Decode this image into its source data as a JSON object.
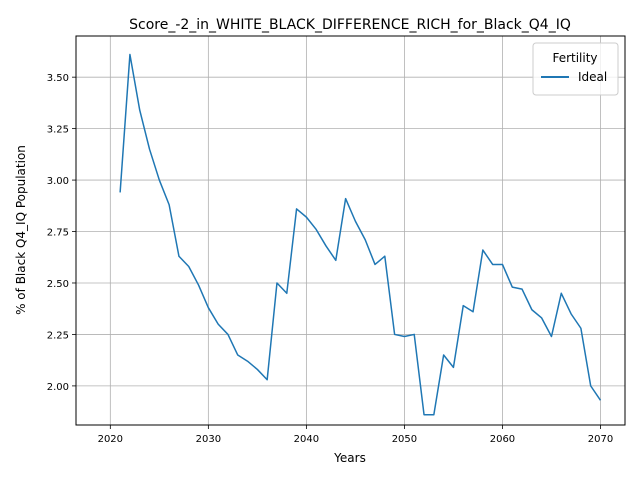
{
  "chart_data": {
    "type": "line",
    "title": "Score_-2_in_WHITE_BLACK_DIFFERENCE_RICH_for_Black_Q4_IQ",
    "xlabel": "Years",
    "ylabel": "% of Black Q4_IQ Population",
    "xlim": [
      2016.5,
      2072.5
    ],
    "ylim": [
      1.81,
      3.7
    ],
    "xticks": [
      2020,
      2030,
      2040,
      2050,
      2060,
      2070
    ],
    "yticks": [
      2.0,
      2.25,
      2.5,
      2.75,
      3.0,
      3.25,
      3.5
    ],
    "ytick_labels": [
      "2.00",
      "2.25",
      "2.50",
      "2.75",
      "3.00",
      "3.25",
      "3.50"
    ],
    "grid": true,
    "legend": {
      "title": "Fertility",
      "position": "top-right"
    },
    "series": [
      {
        "name": "Ideal",
        "color": "#1f77b4",
        "x": [
          2021,
          2022,
          2023,
          2024,
          2025,
          2026,
          2027,
          2028,
          2029,
          2030,
          2031,
          2032,
          2033,
          2034,
          2035,
          2036,
          2037,
          2038,
          2039,
          2040,
          2041,
          2042,
          2043,
          2044,
          2045,
          2046,
          2047,
          2048,
          2049,
          2050,
          2051,
          2052,
          2053,
          2054,
          2055,
          2056,
          2057,
          2058,
          2059,
          2060,
          2061,
          2062,
          2063,
          2064,
          2065,
          2066,
          2067,
          2068,
          2069,
          2070
        ],
        "y": [
          2.94,
          3.61,
          3.34,
          3.15,
          3.0,
          2.88,
          2.63,
          2.58,
          2.49,
          2.38,
          2.3,
          2.25,
          2.15,
          2.12,
          2.08,
          2.03,
          2.5,
          2.45,
          2.86,
          2.82,
          2.76,
          2.68,
          2.61,
          2.91,
          2.8,
          2.71,
          2.59,
          2.63,
          2.25,
          2.24,
          2.25,
          1.86,
          1.86,
          2.15,
          2.09,
          2.39,
          2.36,
          2.66,
          2.59,
          2.59,
          2.48,
          2.47,
          2.37,
          2.33,
          2.24,
          2.45,
          2.35,
          2.28,
          2.0,
          1.93
        ]
      }
    ]
  }
}
